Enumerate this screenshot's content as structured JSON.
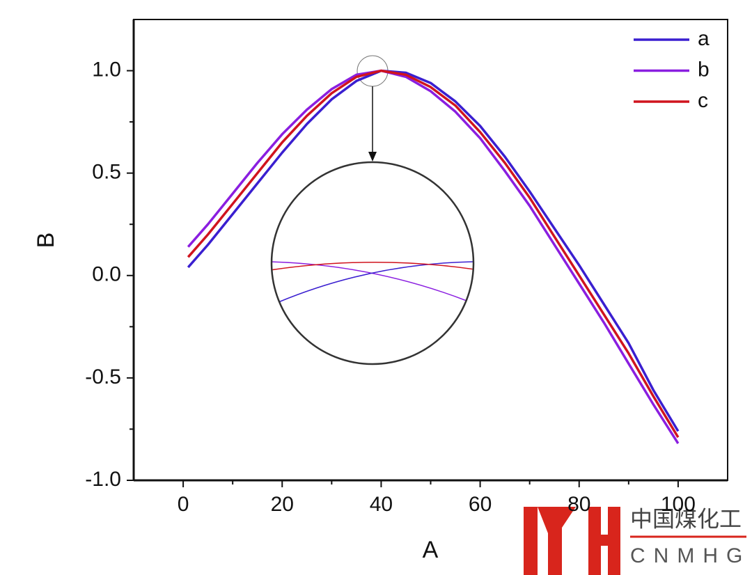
{
  "chart_data": {
    "type": "line",
    "x_label": "A",
    "y_label": "B",
    "x": [
      1,
      5,
      10,
      15,
      20,
      25,
      30,
      35,
      40,
      45,
      50,
      55,
      60,
      65,
      70,
      75,
      80,
      85,
      90,
      95,
      100
    ],
    "series": [
      {
        "name": "a",
        "color": "#3a1fd0",
        "values": [
          0.04,
          0.15,
          0.3,
          0.45,
          0.6,
          0.74,
          0.86,
          0.95,
          1.0,
          0.99,
          0.94,
          0.85,
          0.73,
          0.58,
          0.41,
          0.23,
          0.05,
          -0.14,
          -0.33,
          -0.56,
          -0.76
        ]
      },
      {
        "name": "b",
        "color": "#8a1ee0",
        "values": [
          0.14,
          0.25,
          0.4,
          0.55,
          0.69,
          0.81,
          0.91,
          0.98,
          1.0,
          0.97,
          0.9,
          0.8,
          0.67,
          0.51,
          0.34,
          0.15,
          -0.04,
          -0.23,
          -0.43,
          -0.63,
          -0.82
        ]
      },
      {
        "name": "c",
        "color": "#d0141e",
        "values": [
          0.09,
          0.2,
          0.35,
          0.5,
          0.65,
          0.78,
          0.89,
          0.97,
          1.0,
          0.98,
          0.92,
          0.83,
          0.7,
          0.55,
          0.38,
          0.19,
          0.0,
          -0.19,
          -0.38,
          -0.59,
          -0.79
        ]
      }
    ],
    "xlim": [
      -10,
      110
    ],
    "ylim": [
      -1,
      1.25
    ],
    "xticks": [
      0,
      20,
      40,
      60,
      80,
      100
    ],
    "yticks": [
      {
        "value": -1,
        "label": "-1.0"
      },
      {
        "value": -0.5,
        "label": "-0.5"
      },
      {
        "value": 0,
        "label": "0.0"
      },
      {
        "value": 0.5,
        "label": "0.5"
      },
      {
        "value": 1,
        "label": "1.0"
      }
    ],
    "xminorticks": [
      10,
      30,
      50,
      70,
      90
    ],
    "yminorticks": [
      -0.75,
      -0.25,
      0.25,
      0.75
    ],
    "legend": "upper right"
  },
  "watermark": {
    "name": "中国煤化工",
    "code": "CNMHG"
  }
}
